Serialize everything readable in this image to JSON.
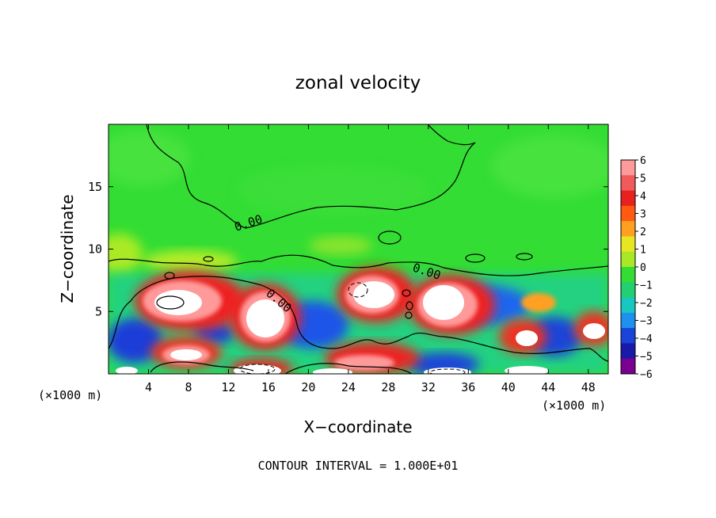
{
  "chart_data": {
    "type": "heatmap",
    "title": "zonal velocity",
    "xlabel": "X−coordinate",
    "ylabel": "Z−coordinate",
    "x_unit_label_left": "(×1000 m)",
    "x_unit_label_right": "(×1000 m)",
    "footer": "CONTOUR INTERVAL = 1.000E+01",
    "xlim": [
      0,
      50
    ],
    "ylim": [
      0,
      20
    ],
    "xticks": [
      4,
      8,
      12,
      16,
      20,
      24,
      28,
      32,
      36,
      40,
      44,
      48
    ],
    "yticks": [
      5,
      10,
      15
    ],
    "colorbar_ticks": [
      "6",
      "5",
      "4",
      "3",
      "2",
      "1",
      "0",
      "−1",
      "−2",
      "−3",
      "−4",
      "−5",
      "−6"
    ],
    "colorbar_range": [
      -6,
      6
    ],
    "contour_labels": [
      {
        "text": "0.00",
        "x": 14,
        "y": 12
      },
      {
        "text": "0.00",
        "x": 31,
        "y": 8.5
      },
      {
        "text": "0.00",
        "x": 17,
        "y": 6.2
      }
    ],
    "colors": {
      "background_field": "#33dd33",
      "min": "#7a0090",
      "max": "#ff9a9a"
    }
  }
}
